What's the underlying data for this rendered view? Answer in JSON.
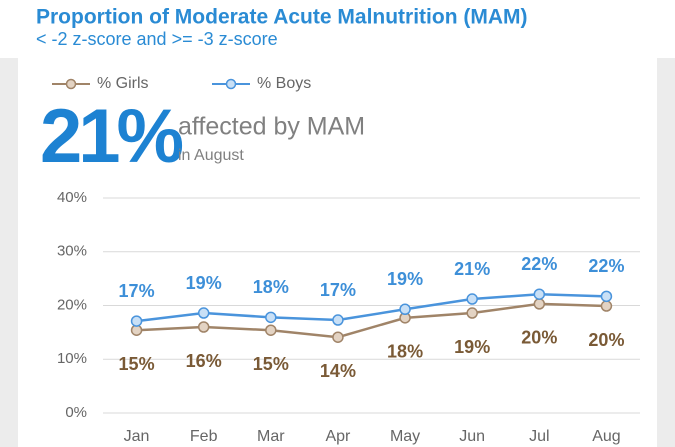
{
  "chart_data": {
    "type": "line",
    "title": "Proportion of Moderate Acute Malnutrition (MAM)",
    "subtitle": "< -2 z-score and >= -3 z-score",
    "headline": "21%",
    "headline_text": "affected by MAM",
    "headline_subtext": "in August",
    "categories": [
      "Jan",
      "Feb",
      "Mar",
      "Apr",
      "May",
      "Jun",
      "Jul",
      "Aug"
    ],
    "series": [
      {
        "name": "% Girls",
        "color": "#a08468",
        "marker_fill": "#e3d3c3",
        "label_color": "#7a5a36",
        "label_position": "below",
        "values": [
          15.4,
          16.0,
          15.4,
          14.1,
          17.7,
          18.6,
          20.3,
          19.9
        ],
        "value_labels": [
          "15%",
          "16%",
          "15%",
          "14%",
          "18%",
          "19%",
          "20%",
          "20%"
        ]
      },
      {
        "name": "% Boys",
        "color": "#4a94dc",
        "marker_fill": "#c9e0f6",
        "label_color": "#3d8fd8",
        "label_position": "above",
        "values": [
          17.1,
          18.6,
          17.8,
          17.3,
          19.3,
          21.2,
          22.1,
          21.7
        ],
        "value_labels": [
          "17%",
          "19%",
          "18%",
          "17%",
          "19%",
          "21%",
          "22%",
          "22%"
        ]
      }
    ],
    "ylim": [
      0,
      40
    ],
    "yticks": [
      {
        "value": 0,
        "label": "0%"
      },
      {
        "value": 10,
        "label": "10%"
      },
      {
        "value": 20,
        "label": "20%"
      },
      {
        "value": 30,
        "label": "30%"
      },
      {
        "value": 40,
        "label": "40%"
      }
    ],
    "grid": true
  }
}
